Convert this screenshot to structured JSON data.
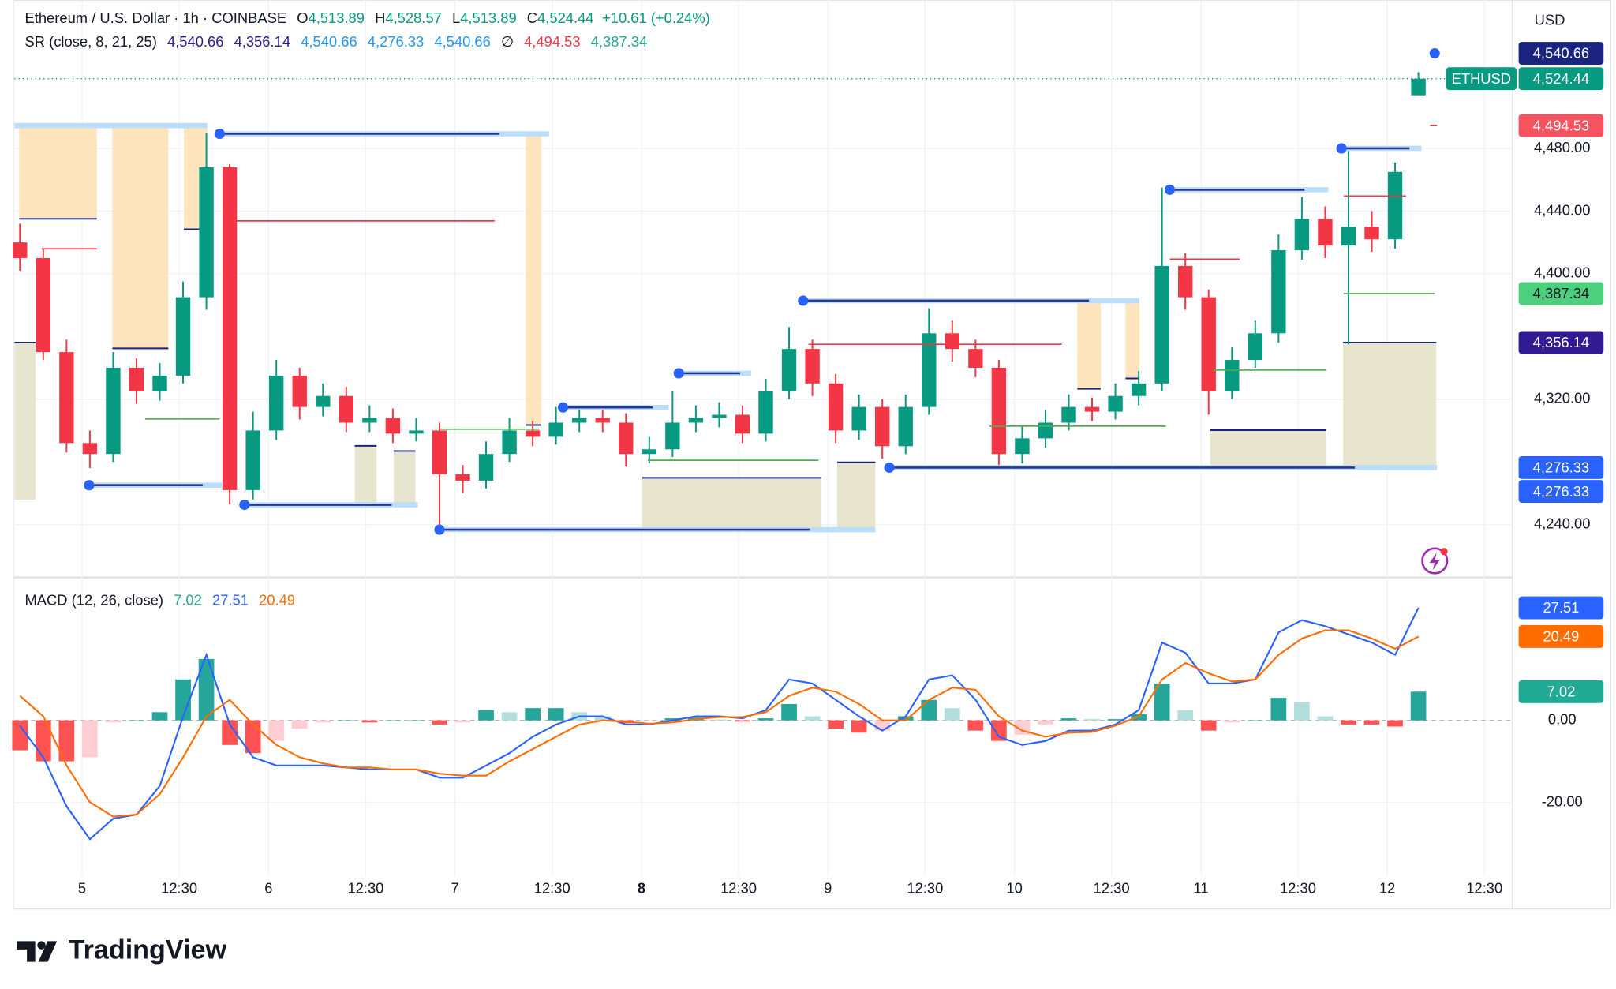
{
  "chart_data": [
    {
      "type": "candlestick",
      "title": "Ethereum / U.S. Dollar · 1h · COINBASE",
      "ohlc": [
        {
          "key": "O",
          "value": "4,513.89"
        },
        {
          "key": "H",
          "value": "4,528.57"
        },
        {
          "key": "L",
          "value": "4,513.89"
        },
        {
          "key": "C",
          "value": "4,524.44"
        }
      ],
      "change": "+10.61 (+0.24%)",
      "currency": "USD",
      "up_color": "#089981",
      "down_color": "#f23645",
      "x": [
        -8,
        -5,
        -2,
        1,
        4,
        7,
        10,
        13,
        16,
        19,
        22,
        25,
        28,
        31,
        34,
        37,
        40,
        43,
        46,
        49,
        52,
        55,
        58,
        61,
        64,
        67,
        70,
        73,
        76,
        79,
        82,
        85,
        88,
        91,
        94,
        97,
        100,
        103,
        106,
        109,
        112,
        115,
        118,
        121,
        124,
        127,
        130,
        133,
        136,
        139,
        142,
        145,
        148,
        151,
        154,
        157,
        160,
        163,
        166,
        169,
        172
      ],
      "open": [
        4420,
        4410,
        4350,
        4292,
        4285,
        4340,
        4325,
        4335,
        4385,
        4468,
        4262,
        4300,
        4335,
        4315,
        4322,
        4305,
        4308,
        4298,
        4300,
        4272,
        4268,
        4285,
        4300,
        4296,
        4305,
        4308,
        4305,
        4285,
        4288,
        4305,
        4308,
        4310,
        4298,
        4325,
        4352,
        4330,
        4300,
        4315,
        4290,
        4315,
        4362,
        4352,
        4340,
        4285,
        4295,
        4305,
        4315,
        4312,
        4322,
        4330,
        4405,
        4385,
        4325,
        4345,
        4362,
        4415,
        4435,
        4418,
        4430,
        4422,
        4513.89
      ],
      "high": [
        4432,
        4416,
        4358,
        4300,
        4350,
        4346,
        4343,
        4395,
        4490,
        4470,
        4312,
        4345,
        4340,
        4330,
        4328,
        4316,
        4314,
        4308,
        4305,
        4278,
        4293,
        4308,
        4306,
        4315,
        4316,
        4314,
        4311,
        4296,
        4325,
        4316,
        4318,
        4316,
        4333,
        4366,
        4358,
        4336,
        4323,
        4320,
        4323,
        4378,
        4370,
        4358,
        4345,
        4303,
        4313,
        4323,
        4321,
        4330,
        4338,
        4455,
        4413,
        4390,
        4353,
        4370,
        4425,
        4449,
        4443,
        4480,
        4440,
        4471,
        4528.57
      ],
      "low": [
        4402,
        4345,
        4286,
        4276,
        4280,
        4317,
        4319,
        4330,
        4377,
        4253,
        4256,
        4294,
        4307,
        4309,
        4299,
        4299,
        4292,
        4293,
        4236,
        4260,
        4263,
        4280,
        4290,
        4291,
        4299,
        4299,
        4277,
        4279,
        4283,
        4299,
        4302,
        4292,
        4293,
        4320,
        4322,
        4292,
        4294,
        4282,
        4285,
        4310,
        4344,
        4334,
        4277,
        4279,
        4289,
        4300,
        4306,
        4307,
        4316,
        4325,
        4377,
        4310,
        4320,
        4340,
        4356,
        4409,
        4410,
        4355,
        4414,
        4416,
        4513.89
      ],
      "close": [
        4410,
        4350,
        4292,
        4285,
        4340,
        4325,
        4335,
        4385,
        4468,
        4262,
        4300,
        4335,
        4315,
        4322,
        4305,
        4308,
        4298,
        4300,
        4272,
        4268,
        4285,
        4300,
        4296,
        4305,
        4308,
        4305,
        4285,
        4288,
        4305,
        4308,
        4310,
        4298,
        4325,
        4352,
        4330,
        4300,
        4315,
        4290,
        4315,
        4362,
        4352,
        4340,
        4285,
        4295,
        4305,
        4315,
        4312,
        4322,
        4330,
        4405,
        4385,
        4325,
        4345,
        4362,
        4415,
        4435,
        4418,
        4430,
        4422,
        4465,
        4524.44
      ],
      "xlim": [
        -8.7,
        184.1
      ],
      "xticks": [
        {
          "value": 0,
          "label": "5"
        },
        {
          "value": 12.5,
          "label": "12:30"
        },
        {
          "value": 24,
          "label": "6"
        },
        {
          "value": 36.5,
          "label": "12:30"
        },
        {
          "value": 48,
          "label": "7"
        },
        {
          "value": 60.5,
          "label": "12:30"
        },
        {
          "value": 72,
          "label": "8"
        },
        {
          "value": 84.5,
          "label": "12:30"
        },
        {
          "value": 96,
          "label": "9"
        },
        {
          "value": 108.5,
          "label": "12:30"
        },
        {
          "value": 120,
          "label": "10"
        },
        {
          "value": 132.5,
          "label": "12:30"
        },
        {
          "value": 144,
          "label": "11"
        },
        {
          "value": 156.5,
          "label": "12:30"
        },
        {
          "value": 168,
          "label": "12"
        },
        {
          "value": 180.5,
          "label": "12:30"
        }
      ],
      "ylim": [
        4207.6,
        4567.9
      ],
      "yticks": [
        {
          "value": 4240,
          "label": "4,240.00"
        },
        {
          "value": 4320,
          "label": "4,320.00"
        },
        {
          "value": 4400,
          "label": "4,400.00"
        },
        {
          "value": 4440,
          "label": "4,440.00"
        },
        {
          "value": 4480,
          "label": "4,480.00"
        }
      ],
      "grid": true,
      "last_price": 4524.44,
      "badges": [
        {
          "value": 4540.66,
          "label": "4,540.66",
          "color": "#1a237e"
        },
        {
          "value": 4524.44,
          "label": "4,524.44",
          "color": "#089981",
          "tag": "ETHUSD"
        },
        {
          "value": 4494.53,
          "label": "4,494.53",
          "color": "#f7525f"
        },
        {
          "value": 4387.34,
          "label": "4,387.34",
          "color": "#4cd07d",
          "text_color": "#131722"
        },
        {
          "value": 4356.14,
          "label": "4,356.14",
          "color": "#311b92"
        },
        {
          "value": 4276.33,
          "label": "4,276.33",
          "color": "#2962ff"
        },
        {
          "value": 4276.33,
          "label": "4,276.33",
          "color": "#2962ff"
        }
      ],
      "sr": {
        "title": "SR (close, 8, 21, 25)",
        "legend": [
          {
            "label": "4,540.66",
            "color": "#311b92"
          },
          {
            "label": "4,356.14",
            "color": "#311b92"
          },
          {
            "label": "4,540.66",
            "color": "#2196f3"
          },
          {
            "label": "4,276.33",
            "color": "#2196f3"
          },
          {
            "label": "4,540.66",
            "color": "#2196f3"
          },
          {
            "label": "∅",
            "color": "#131722"
          },
          {
            "label": "4,494.53",
            "color": "#f23645"
          },
          {
            "label": "4,387.34",
            "color": "#22ab94"
          }
        ],
        "zones": [
          {
            "top": 4494.53,
            "bottom": 4435,
            "from": -8.1,
            "to": 1.9,
            "kind": "upper"
          },
          {
            "top": 4494.53,
            "bottom": 4352.4,
            "from": 3.9,
            "to": 11.1,
            "kind": "upper"
          },
          {
            "top": 4494.53,
            "bottom": 4428.4,
            "from": 13.1,
            "to": 16.1,
            "kind": "upper"
          },
          {
            "top": 4489.3,
            "bottom": 4303.5,
            "from": 57.1,
            "to": 59.1,
            "kind": "upper"
          },
          {
            "top": 4382.8,
            "bottom": 4326.6,
            "from": 128.1,
            "to": 131.1,
            "kind": "upper"
          },
          {
            "top": 4382.8,
            "bottom": 4333.2,
            "from": 134.3,
            "to": 136.1,
            "kind": "upper"
          },
          {
            "top": 4356.14,
            "bottom": 4255.9,
            "from": -8.7,
            "to": -6,
            "kind": "lower"
          },
          {
            "top": 4290.2,
            "bottom": 4252.6,
            "from": 35.1,
            "to": 37.9,
            "kind": "lower"
          },
          {
            "top": 4286.9,
            "bottom": 4252.6,
            "from": 40.1,
            "to": 42.9,
            "kind": "lower"
          },
          {
            "top": 4269.8,
            "bottom": 4236.7,
            "from": 72.1,
            "to": 95.1,
            "kind": "lower"
          },
          {
            "top": 4279.7,
            "bottom": 4236.7,
            "from": 97.2,
            "to": 102.1,
            "kind": "lower"
          },
          {
            "top": 4300.2,
            "bottom": 4276.33,
            "from": 145.2,
            "to": 160.1,
            "kind": "lower"
          },
          {
            "top": 4356.14,
            "bottom": 4276.33,
            "from": 162.3,
            "to": 174.3,
            "kind": "lower"
          }
        ],
        "levels": [
          {
            "price": 4494.53,
            "from": -8.7,
            "to": 16.1,
            "style": "extension"
          },
          {
            "price": 4489.3,
            "from": 17.7,
            "to": 60.1,
            "style": "major"
          },
          {
            "price": 4265.1,
            "from": 0.9,
            "to": 18.1,
            "style": "major"
          },
          {
            "price": 4252.6,
            "from": 20.9,
            "to": 43.2,
            "style": "major"
          },
          {
            "price": 4236.7,
            "from": 46,
            "to": 102.1,
            "style": "major"
          },
          {
            "price": 4314.7,
            "from": 61.9,
            "to": 75.5,
            "style": "major"
          },
          {
            "price": 4336.5,
            "from": 76.8,
            "to": 86.1,
            "style": "major"
          },
          {
            "price": 4382.8,
            "from": 92.8,
            "to": 136.1,
            "style": "major"
          },
          {
            "price": 4276.33,
            "from": 103.9,
            "to": 174.4,
            "style": "major"
          },
          {
            "price": 4453.6,
            "from": 140,
            "to": 160.4,
            "style": "major"
          },
          {
            "price": 4480,
            "from": 162.1,
            "to": 172.4,
            "style": "major"
          },
          {
            "price": 4540.66,
            "from": 174.1,
            "to": 174.1,
            "style": "major"
          },
          {
            "price": 4307.4,
            "from": 8.1,
            "to": 17.7,
            "style": "support"
          },
          {
            "price": 4300.8,
            "from": 46.1,
            "to": 58.8,
            "style": "support"
          },
          {
            "price": 4281,
            "from": 72.8,
            "to": 94.8,
            "style": "support"
          },
          {
            "price": 4302.8,
            "from": 116.8,
            "to": 139.5,
            "style": "support"
          },
          {
            "price": 4338.5,
            "from": 145.5,
            "to": 160.1,
            "style": "support"
          },
          {
            "price": 4387.34,
            "from": 162.4,
            "to": 174.1,
            "style": "support"
          },
          {
            "price": 4433.7,
            "from": 18.1,
            "to": 53.1,
            "style": "resistance"
          },
          {
            "price": 4415.9,
            "from": -5.2,
            "to": 1.9,
            "style": "resistance"
          },
          {
            "price": 4355,
            "from": 93.5,
            "to": 126.1,
            "style": "resistance"
          },
          {
            "price": 4409.3,
            "from": 140,
            "to": 149,
            "style": "resistance"
          },
          {
            "price": 4449.6,
            "from": 162.4,
            "to": 170.4,
            "style": "resistance"
          },
          {
            "price": 4494.53,
            "from": 173.5,
            "to": 174.4,
            "style": "resistance"
          }
        ]
      }
    },
    {
      "type": "macd",
      "title": "MACD (12, 26, close)",
      "legend": [
        {
          "label": "7.02",
          "color": "#22ab94"
        },
        {
          "label": "27.51",
          "color": "#2962ff"
        },
        {
          "label": "20.49",
          "color": "#ff6d00"
        }
      ],
      "x": [
        -8,
        -5,
        -2,
        1,
        4,
        7,
        10,
        13,
        16,
        19,
        22,
        25,
        28,
        31,
        34,
        37,
        40,
        43,
        46,
        49,
        52,
        55,
        58,
        61,
        64,
        67,
        70,
        73,
        76,
        79,
        82,
        85,
        88,
        91,
        94,
        97,
        100,
        103,
        106,
        109,
        112,
        115,
        118,
        121,
        124,
        127,
        130,
        133,
        136,
        139,
        142,
        145,
        148,
        151,
        154,
        157,
        160,
        163,
        166,
        169,
        172
      ],
      "histogram": {
        "values": [
          -7.3,
          -10,
          -10,
          -9,
          -0.5,
          0,
          2,
          10,
          15,
          -6,
          -8,
          -5,
          -2,
          -0.5,
          0,
          -0.5,
          0,
          0,
          -1,
          -0.5,
          2.5,
          2,
          3,
          3,
          2,
          1,
          -0.7,
          -0.2,
          0.5,
          0.7,
          0.2,
          -0.3,
          0.5,
          4,
          1,
          -2,
          -3,
          -2.5,
          1,
          5,
          3,
          -2.5,
          -5,
          -3.5,
          -1,
          0.5,
          0.3,
          0.3,
          1.5,
          9,
          2.5,
          -2.5,
          -0.5,
          0,
          5.5,
          4.5,
          1,
          -1,
          -1,
          -1.5,
          7.02
        ],
        "colors": {
          "pos_rising": "#26a69a",
          "pos_falling": "#b2dfdb",
          "neg_falling": "#ff5252",
          "neg_rising": "#ffcdd2"
        }
      },
      "lines": [
        {
          "color": "#2962ff",
          "values": [
            -1.3,
            -9,
            -21,
            -29,
            -24,
            -23,
            -16,
            1,
            16,
            -1,
            -9,
            -11,
            -11,
            -11,
            -11.5,
            -12,
            -12,
            -12,
            -14,
            -14,
            -11,
            -8,
            -4,
            -1,
            1,
            1,
            -1,
            -1,
            0,
            1,
            1,
            0.5,
            2.5,
            10,
            9,
            5,
            1,
            -2.5,
            1,
            10,
            11,
            5,
            -4,
            -6,
            -5,
            -2.5,
            -2.5,
            -1,
            2.5,
            19,
            16.5,
            9,
            9,
            10,
            21.5,
            24.5,
            23,
            21,
            19,
            16,
            27.51
          ]
        },
        {
          "color": "#ff6d00",
          "values": [
            6,
            1,
            -11,
            -20,
            -23.5,
            -23,
            -18,
            -9,
            1,
            5,
            -1,
            -6,
            -9,
            -10.5,
            -11.5,
            -11.5,
            -12,
            -12,
            -13,
            -13.5,
            -13.5,
            -10,
            -7,
            -4,
            -1,
            0,
            -0.3,
            -0.8,
            -0.5,
            0.3,
            0.8,
            0.8,
            2,
            6,
            8,
            7,
            4,
            0,
            0,
            5,
            8,
            7.5,
            1,
            -2.5,
            -4,
            -3,
            -2.8,
            -1.3,
            1,
            10,
            14,
            11.5,
            9.5,
            10,
            16,
            20,
            22,
            22,
            20,
            17.5,
            20.49
          ]
        }
      ],
      "xlim": [
        -8.7,
        184.1
      ],
      "ylim": [
        -37.97,
        34.68
      ],
      "yticks": [
        {
          "value": 0,
          "label": "0.00"
        },
        {
          "value": -20,
          "label": "-20.00"
        }
      ],
      "badges": [
        {
          "value": 27.51,
          "label": "27.51",
          "color": "#2962ff"
        },
        {
          "value": 20.49,
          "label": "20.49",
          "color": "#ff6d00"
        },
        {
          "value": 7.02,
          "label": "7.02",
          "color": "#22ab94"
        }
      ]
    }
  ],
  "logo": "TradingView"
}
